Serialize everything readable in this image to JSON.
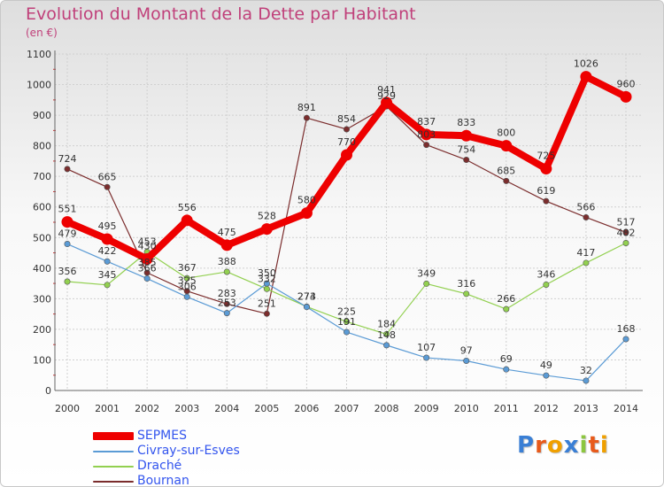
{
  "chart_data": {
    "type": "line",
    "title": "Evolution du Montant de la Dette par Habitant",
    "subtitle": "(en €)",
    "xlabel": "",
    "ylabel": "",
    "x": [
      "2000",
      "2001",
      "2002",
      "2003",
      "2004",
      "2005",
      "2006",
      "2007",
      "2008",
      "2009",
      "2010",
      "2011",
      "2012",
      "2013",
      "2014"
    ],
    "ylim": [
      0,
      1100
    ],
    "yticks": [
      "0",
      "100",
      "200",
      "300",
      "400",
      "500",
      "600",
      "700",
      "800",
      "900",
      "1000",
      "1100"
    ],
    "grid": true,
    "legend": "bottom-left",
    "series": [
      {
        "name": "SEPMES",
        "color": "#ee0000",
        "values": [
          551,
          495,
          430,
          556,
          475,
          528,
          580,
          770,
          941,
          837,
          833,
          800,
          725,
          1026,
          960
        ],
        "labels": [
          "551",
          "495",
          "430",
          "556",
          "475",
          "528",
          "580",
          "770",
          "941",
          "837",
          "833",
          "800",
          "725",
          "1026",
          "960"
        ]
      },
      {
        "name": "Civray-sur-Esves",
        "color": "#5b9bd5",
        "values": [
          479,
          422,
          366,
          306,
          253,
          350,
          273,
          191,
          148,
          107,
          97,
          69,
          49,
          32,
          168
        ],
        "labels": [
          "479",
          "422",
          "366",
          "306",
          "253",
          "350",
          "273",
          "191",
          "148",
          "107",
          "97",
          "69",
          "49",
          "32",
          "168"
        ]
      },
      {
        "name": "Draché",
        "color": "#92d050",
        "values": [
          356,
          345,
          453,
          367,
          388,
          332,
          274,
          225,
          184,
          349,
          316,
          266,
          346,
          417,
          482
        ],
        "labels": [
          "356",
          "345",
          "453",
          "367",
          "388",
          "332",
          "274",
          "225",
          "184",
          "349",
          "316",
          "266",
          "346",
          "417",
          "482"
        ]
      },
      {
        "name": "Bournan",
        "color": "#7b2d2d",
        "values": [
          724,
          665,
          385,
          325,
          283,
          251,
          891,
          854,
          929,
          803,
          754,
          685,
          619,
          566,
          517
        ],
        "labels": [
          "724",
          "665",
          "385",
          "325",
          "283",
          "251",
          "891",
          "854",
          "929",
          "803",
          "754",
          "685",
          "619",
          "566",
          "517"
        ]
      }
    ]
  },
  "logo": {
    "letters": [
      "P",
      "r",
      "o",
      "x",
      "i",
      "t",
      "i"
    ],
    "colors": [
      "#3a7fd5",
      "#e85a1b",
      "#f0a000",
      "#3a7fd5",
      "#8cc63f",
      "#e85a1b",
      "#f0a000"
    ]
  }
}
